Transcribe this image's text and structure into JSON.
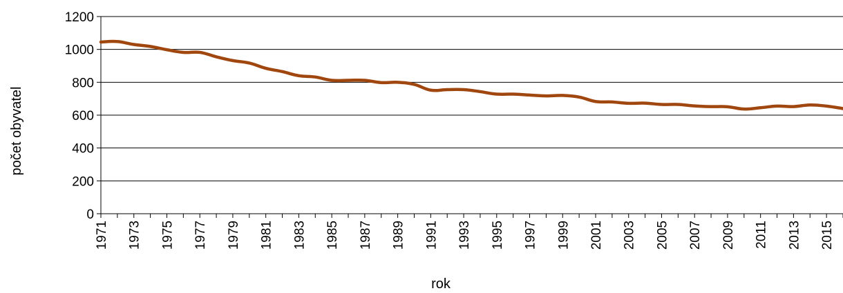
{
  "chart_data": {
    "type": "line",
    "title": "",
    "xlabel": "rok",
    "ylabel": "počet obyvatel",
    "ylim": [
      0,
      1200
    ],
    "yticks": [
      "0",
      "200",
      "400",
      "600",
      "800",
      "1000",
      "1200"
    ],
    "xlim": [
      1971,
      2016
    ],
    "xticks": [
      "1971",
      "1973",
      "1975",
      "1977",
      "1979",
      "1981",
      "1983",
      "1985",
      "1987",
      "1989",
      "1991",
      "1993",
      "1995",
      "1997",
      "1999",
      "2001",
      "2003",
      "2005",
      "2007",
      "2009",
      "2011",
      "2013",
      "2015"
    ],
    "grid": true,
    "legend": "none",
    "series": [
      {
        "color": "#a0460f",
        "x": [
          1971,
          1972,
          1973,
          1974,
          1975,
          1976,
          1977,
          1978,
          1979,
          1980,
          1981,
          1982,
          1983,
          1984,
          1985,
          1986,
          1987,
          1988,
          1989,
          1990,
          1991,
          1992,
          1993,
          1994,
          1995,
          1996,
          1997,
          1998,
          1999,
          2000,
          2001,
          2002,
          2003,
          2004,
          2005,
          2006,
          2007,
          2008,
          2009,
          2010,
          2011,
          2012,
          2013,
          2014,
          2015,
          2016
        ],
        "values": [
          1045,
          1048,
          1030,
          1018,
          998,
          982,
          982,
          955,
          932,
          917,
          885,
          865,
          840,
          832,
          812,
          812,
          812,
          798,
          800,
          787,
          752,
          755,
          755,
          743,
          728,
          728,
          722,
          717,
          720,
          710,
          683,
          680,
          672,
          673,
          665,
          665,
          656,
          652,
          651,
          637,
          645,
          655,
          652,
          662,
          655,
          640
        ]
      }
    ]
  }
}
